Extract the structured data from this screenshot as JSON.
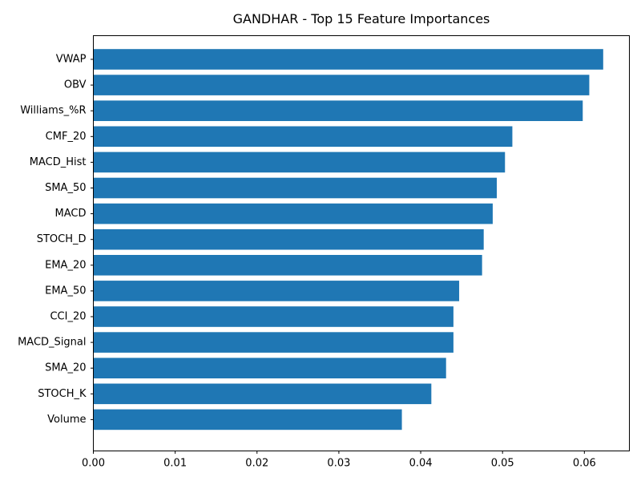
{
  "chart_data": {
    "type": "bar",
    "orientation": "horizontal",
    "title": "GANDHAR - Top 15 Feature Importances",
    "xlabel": "",
    "ylabel": "",
    "xlim": [
      0,
      0.0655
    ],
    "xticks": [
      0.0,
      0.01,
      0.02,
      0.03,
      0.04,
      0.05,
      0.06
    ],
    "xtick_labels": [
      "0.00",
      "0.01",
      "0.02",
      "0.03",
      "0.04",
      "0.05",
      "0.06"
    ],
    "grid": false,
    "legend": false,
    "bar_color": "#1f77b4",
    "categories": [
      "VWAP",
      "OBV",
      "Williams_%R",
      "CMF_20",
      "MACD_Hist",
      "SMA_50",
      "MACD",
      "STOCH_D",
      "EMA_20",
      "EMA_50",
      "CCI_20",
      "MACD_Signal",
      "SMA_20",
      "STOCH_K",
      "Volume"
    ],
    "values": [
      0.0623,
      0.0606,
      0.0598,
      0.0512,
      0.0503,
      0.0493,
      0.0488,
      0.0477,
      0.0475,
      0.0447,
      0.044,
      0.044,
      0.0431,
      0.0413,
      0.0377
    ]
  }
}
